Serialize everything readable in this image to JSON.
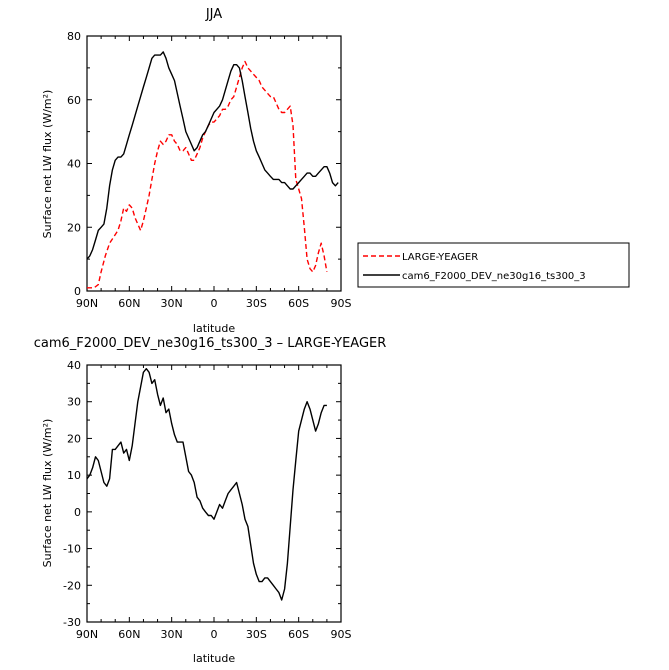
{
  "chart_data": [
    {
      "type": "line",
      "title": "JJA",
      "xlabel": "latitude",
      "ylabel": "Surface net LW flux (W/m²)",
      "xlim": [
        90,
        -90
      ],
      "ylim": [
        0,
        80
      ],
      "xticks": [
        90,
        60,
        30,
        0,
        -30,
        -60,
        -90
      ],
      "xtick_labels": [
        "90N",
        "60N",
        "30N",
        "0",
        "30S",
        "60S",
        "90S"
      ],
      "yticks": [
        0,
        20,
        40,
        60,
        80
      ],
      "grid": false,
      "legend_position": "right",
      "series": [
        {
          "name": "LARGE-YEAGER",
          "color": "#ff0000",
          "dash": "dashed",
          "x": [
            90,
            85,
            82,
            80,
            77,
            74,
            71,
            68,
            66,
            64,
            62,
            60,
            58,
            56,
            54,
            52,
            50,
            48,
            46,
            44,
            42,
            40,
            38,
            36,
            34,
            32,
            30,
            28,
            26,
            24,
            22,
            20,
            18,
            16,
            14,
            12,
            10,
            8,
            6,
            4,
            2,
            0,
            -2,
            -4,
            -6,
            -8,
            -10,
            -12,
            -14,
            -16,
            -18,
            -20,
            -22,
            -24,
            -26,
            -28,
            -30,
            -32,
            -34,
            -36,
            -38,
            -40,
            -42,
            -44,
            -46,
            -48,
            -50,
            -52,
            -54,
            -56,
            -58,
            -60,
            -62,
            -64,
            -66,
            -68,
            -70,
            -72,
            -74,
            -76,
            -78,
            -80
          ],
          "y": [
            1,
            1,
            2,
            6,
            11,
            15,
            17,
            19,
            22,
            26,
            25,
            27,
            26,
            23,
            21,
            19,
            22,
            26,
            30,
            35,
            40,
            44,
            47,
            46,
            47,
            49,
            49,
            47,
            46,
            44,
            44,
            45,
            43,
            41,
            41,
            43,
            45,
            48,
            50,
            52,
            53,
            53,
            54,
            55,
            57,
            57,
            58,
            60,
            61,
            64,
            67,
            70,
            72,
            70,
            69,
            68,
            67,
            66,
            64,
            63,
            62,
            61,
            61,
            59,
            57,
            56,
            56,
            57,
            58,
            52,
            35,
            32,
            29,
            20,
            10,
            7,
            6,
            8,
            12,
            15,
            11,
            6
          ]
        },
        {
          "name": "cam6_F2000_DEV_ne30g16_ts300_3",
          "color": "#000000",
          "dash": "solid",
          "x": [
            90,
            88,
            86,
            84,
            82,
            80,
            78,
            76,
            74,
            72,
            70,
            68,
            66,
            64,
            62,
            60,
            58,
            56,
            54,
            52,
            50,
            48,
            46,
            44,
            42,
            40,
            38,
            36,
            34,
            32,
            30,
            28,
            26,
            24,
            22,
            20,
            18,
            16,
            14,
            12,
            10,
            8,
            6,
            4,
            2,
            0,
            -2,
            -4,
            -6,
            -8,
            -10,
            -12,
            -14,
            -16,
            -18,
            -20,
            -22,
            -24,
            -26,
            -28,
            -30,
            -32,
            -34,
            -36,
            -38,
            -40,
            -42,
            -44,
            -46,
            -48,
            -50,
            -52,
            -54,
            -56,
            -58,
            -60,
            -62,
            -64,
            -66,
            -68,
            -70,
            -72,
            -74,
            -76,
            -78,
            -80,
            -82,
            -84,
            -86,
            -88
          ],
          "y": [
            10,
            11,
            13,
            16,
            19,
            20,
            21,
            26,
            33,
            38,
            41,
            42,
            42,
            43,
            46,
            49,
            52,
            55,
            58,
            61,
            64,
            67,
            70,
            73,
            74,
            74,
            74,
            75,
            73,
            70,
            68,
            66,
            62,
            58,
            54,
            50,
            48,
            46,
            44,
            45,
            47,
            49,
            50,
            52,
            54,
            56,
            57,
            58,
            60,
            63,
            66,
            69,
            71,
            71,
            70,
            66,
            61,
            56,
            51,
            47,
            44,
            42,
            40,
            38,
            37,
            36,
            35,
            35,
            35,
            34,
            34,
            33,
            32,
            32,
            33,
            34,
            35,
            36,
            37,
            37,
            36,
            36,
            37,
            38,
            39,
            39,
            37,
            34,
            33,
            34
          ]
        }
      ]
    },
    {
      "type": "line",
      "title": "cam6_F2000_DEV_ne30g16_ts300_3 – LARGE-YEAGER",
      "xlabel": "latitude",
      "ylabel": "Surface net LW flux (W/m²)",
      "xlim": [
        90,
        -90
      ],
      "ylim": [
        -30,
        40
      ],
      "xticks": [
        90,
        60,
        30,
        0,
        -30,
        -60,
        -90
      ],
      "xtick_labels": [
        "90N",
        "60N",
        "30N",
        "0",
        "30S",
        "60S",
        "90S"
      ],
      "yticks": [
        -30,
        -20,
        -10,
        0,
        10,
        20,
        30,
        40
      ],
      "grid": false,
      "series": [
        {
          "color": "#000000",
          "dash": "solid",
          "x": [
            90,
            88,
            86,
            84,
            82,
            80,
            78,
            76,
            74,
            72,
            70,
            68,
            66,
            64,
            62,
            60,
            58,
            56,
            54,
            52,
            50,
            48,
            46,
            44,
            42,
            40,
            38,
            36,
            34,
            32,
            30,
            28,
            26,
            24,
            22,
            20,
            18,
            16,
            14,
            12,
            10,
            8,
            6,
            4,
            2,
            0,
            -2,
            -4,
            -6,
            -8,
            -10,
            -12,
            -14,
            -16,
            -18,
            -20,
            -22,
            -24,
            -26,
            -28,
            -30,
            -32,
            -34,
            -36,
            -38,
            -40,
            -42,
            -44,
            -46,
            -48,
            -50,
            -52,
            -54,
            -56,
            -58,
            -60,
            -62,
            -64,
            -66,
            -68,
            -70,
            -72,
            -74,
            -76,
            -78,
            -80
          ],
          "y": [
            9,
            10,
            12,
            15,
            14,
            11,
            8,
            7,
            9,
            17,
            17,
            18,
            19,
            16,
            17,
            14,
            18,
            24,
            30,
            34,
            38,
            39,
            38,
            35,
            36,
            32,
            29,
            31,
            27,
            28,
            24,
            21,
            19,
            19,
            19,
            15,
            11,
            10,
            8,
            4,
            3,
            1,
            0,
            -1,
            -1,
            -2,
            0,
            2,
            1,
            3,
            5,
            6,
            7,
            8,
            5,
            2,
            -2,
            -4,
            -9,
            -14,
            -17,
            -19,
            -19,
            -18,
            -18,
            -19,
            -20,
            -21,
            -22,
            -24,
            -21,
            -14,
            -4,
            6,
            14,
            22,
            25,
            28,
            30,
            28,
            25,
            22,
            24,
            27,
            29,
            29
          ]
        }
      ]
    }
  ]
}
